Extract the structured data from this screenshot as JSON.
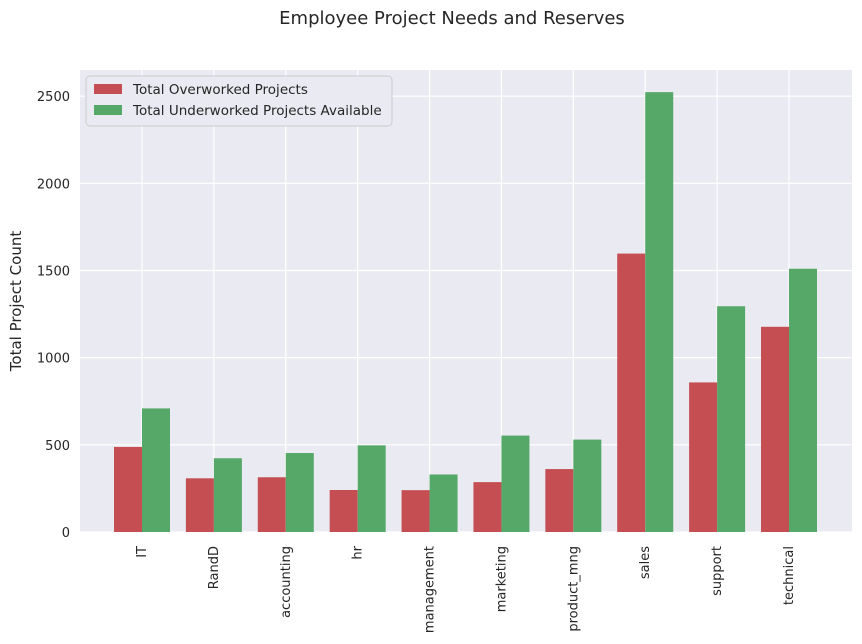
{
  "chart_data": {
    "type": "bar",
    "title": "Employee Project Needs and Reserves",
    "xlabel": "",
    "ylabel": "Total Project Count",
    "categories": [
      "IT",
      "RandD",
      "accounting",
      "hr",
      "management",
      "marketing",
      "product_mng",
      "sales",
      "support",
      "technical"
    ],
    "series": [
      {
        "name": "Total Overworked Projects",
        "color": "#c44e52",
        "values": [
          488,
          308,
          314,
          241,
          240,
          286,
          361,
          1597,
          858,
          1177
        ]
      },
      {
        "name": "Total Underworked Projects Available",
        "color": "#55a868",
        "values": [
          709,
          423,
          453,
          497,
          330,
          553,
          530,
          2523,
          1295,
          1510
        ]
      }
    ],
    "ylim": [
      0,
      2650
    ],
    "yticks": [
      0,
      500,
      1000,
      1500,
      2000,
      2500
    ],
    "grid": true,
    "legend_position": "top-left",
    "background": "#eaeaf2"
  }
}
